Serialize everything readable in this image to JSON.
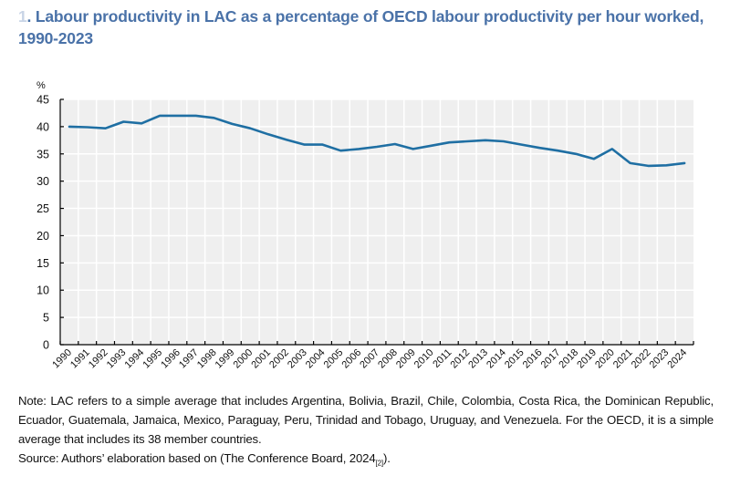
{
  "title": {
    "number": "1",
    "text": ". Labour productivity in LAC as a percentage of OECD labour productivity per hour worked, 1990-2023"
  },
  "note": "Note: LAC refers to a simple average that includes Argentina, Bolivia, Brazil, Chile, Colombia, Costa Rica, the Dominican Republic, Ecuador, Guatemala, Jamaica, Mexico, Paraguay, Peru, Trinidad and Tobago, Uruguay, and Venezuela. For the OECD, it is a simple average that includes its 38 member countries.",
  "source": {
    "text": "Source: Authors’ elaboration based on (The Conference Board, 2024",
    "ref": "[2]",
    "close": ")."
  },
  "colors": {
    "line": "#1f6fa3",
    "plot_bg": "#efefef",
    "grid": "#ffffff",
    "title": "#4a72a8"
  },
  "chart_data": {
    "type": "line",
    "title": "Labour productivity in LAC as a percentage of OECD labour productivity per hour worked, 1990-2023",
    "xlabel": "",
    "ylabel": "%",
    "ylim": [
      0,
      45
    ],
    "yticks": [
      0,
      5,
      10,
      15,
      20,
      25,
      30,
      35,
      40,
      45
    ],
    "grid": true,
    "legend": "none",
    "categories": [
      "1990",
      "1991",
      "1992",
      "1993",
      "1994",
      "1995",
      "1996",
      "1997",
      "1998",
      "1999",
      "2000",
      "2001",
      "2002",
      "2003",
      "2004",
      "2005",
      "2006",
      "2007",
      "2008",
      "2009",
      "2010",
      "2011",
      "2012",
      "2013",
      "2014",
      "2015",
      "2016",
      "2017",
      "2018",
      "2019",
      "2020",
      "2021",
      "2022",
      "2023",
      "2024"
    ],
    "series": [
      {
        "name": "LAC as % of OECD",
        "values": [
          40.0,
          39.9,
          39.7,
          40.9,
          40.6,
          42.0,
          42.0,
          42.0,
          41.6,
          40.5,
          39.7,
          38.6,
          37.6,
          36.7,
          36.7,
          35.6,
          35.9,
          36.3,
          36.8,
          35.9,
          36.5,
          37.1,
          37.3,
          37.5,
          37.3,
          36.7,
          36.1,
          35.6,
          35.0,
          34.1,
          35.9,
          33.3,
          32.8,
          32.9,
          33.3
        ]
      }
    ]
  }
}
